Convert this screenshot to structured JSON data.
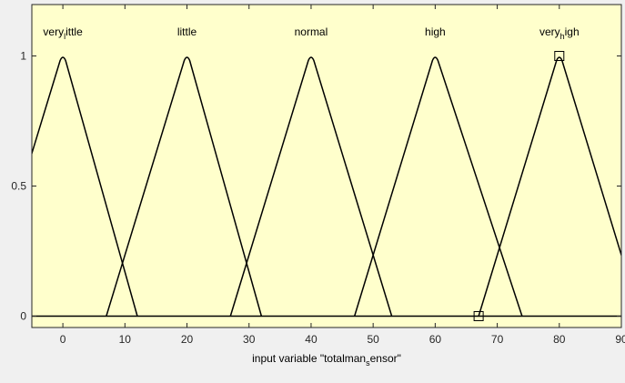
{
  "chart_data": {
    "type": "line",
    "xlabel_parts": [
      "input variable \"totalman",
      "s",
      "ensor\""
    ],
    "ylabel": "",
    "xlim": [
      -5,
      90
    ],
    "ylim": [
      0,
      1
    ],
    "x_ticks": [
      0,
      10,
      20,
      30,
      40,
      50,
      60,
      70,
      80,
      90
    ],
    "y_ticks": [
      0,
      0.5,
      1
    ],
    "y_tick_labels": [
      "0",
      "0.5",
      "1"
    ],
    "grid": false,
    "colors": {
      "plot_bg": "#ffffcc",
      "line": "#000000",
      "figure_bg": "#f0f0f0"
    },
    "series": [
      {
        "label_parts": [
          "very",
          "l",
          "ittle"
        ],
        "peak_label_y": 1.1,
        "points": [
          [
            -13,
            0
          ],
          [
            0,
            1
          ],
          [
            12,
            0
          ]
        ]
      },
      {
        "label_parts": [
          "little"
        ],
        "peak_label_y": 1.1,
        "points": [
          [
            7,
            0
          ],
          [
            20,
            1
          ],
          [
            32,
            0
          ]
        ]
      },
      {
        "label_parts": [
          "normal"
        ],
        "peak_label_y": 1.1,
        "points": [
          [
            27,
            0
          ],
          [
            40,
            1
          ],
          [
            53,
            0
          ]
        ]
      },
      {
        "label_parts": [
          "high"
        ],
        "peak_label_y": 1.1,
        "points": [
          [
            47,
            0
          ],
          [
            60,
            1
          ],
          [
            74,
            0
          ]
        ]
      },
      {
        "label_parts": [
          "very",
          "h",
          "igh"
        ],
        "peak_label_y": 1.1,
        "points": [
          [
            67,
            0
          ],
          [
            80,
            1
          ],
          [
            93,
            0
          ]
        ]
      }
    ],
    "markers": [
      {
        "x": 80,
        "y": 1
      },
      {
        "x": 67,
        "y": 0
      }
    ]
  }
}
